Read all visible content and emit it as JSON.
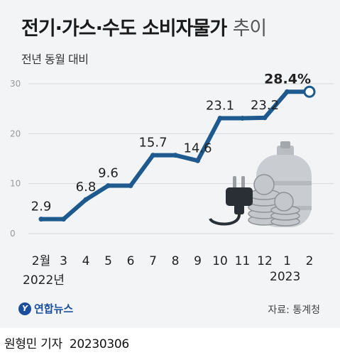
{
  "title_main": "전기·가스·수도 소비자물가",
  "title_tail": "추이",
  "subtitle": "전년 동월 대비",
  "year_start": "2022년",
  "year_end": "2023",
  "source": "자료: 통계청",
  "logo_text": "연합뉴스",
  "byline": "원형민 기자",
  "byline_date": "20230306",
  "colors": {
    "line": "#1e5a8e",
    "background": "#f3f4f6",
    "grid": "#d8d8d8"
  },
  "chart_data": {
    "type": "line",
    "categories": [
      "2월",
      "3",
      "4",
      "5",
      "6",
      "7",
      "8",
      "9",
      "10",
      "11",
      "12",
      "1",
      "2"
    ],
    "values": [
      2.9,
      2.9,
      6.8,
      9.6,
      9.6,
      15.7,
      15.7,
      14.6,
      23.1,
      23.1,
      23.2,
      28.4,
      28.4
    ],
    "data_labels": [
      {
        "index": 0,
        "text": "2.9"
      },
      {
        "index": 2,
        "text": "6.8"
      },
      {
        "index": 3,
        "text": "9.6"
      },
      {
        "index": 5,
        "text": "15.7"
      },
      {
        "index": 7,
        "text": "14.6"
      },
      {
        "index": 8,
        "text": "23.1"
      },
      {
        "index": 10,
        "text": "23.2"
      },
      {
        "index": 12,
        "text": "28.4%"
      }
    ],
    "yticks": [
      "0",
      "10",
      "20",
      "30"
    ],
    "ylim": [
      0,
      30
    ],
    "grid": true
  }
}
